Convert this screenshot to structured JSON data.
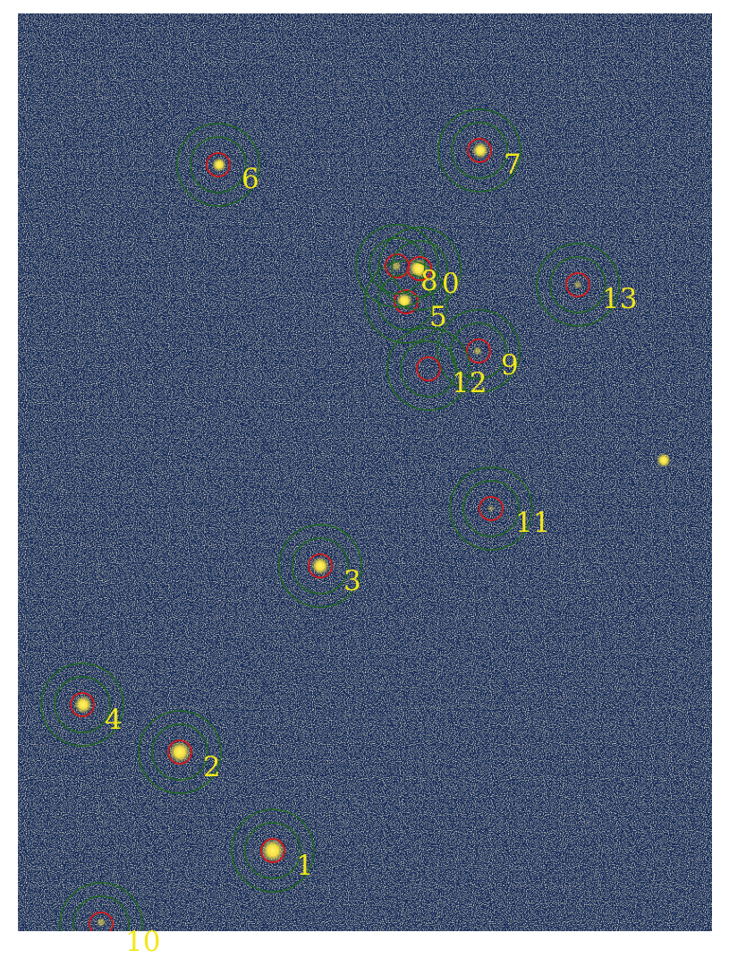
{
  "colors": {
    "sky_background": "#152a5a",
    "noise_light": "#c8c084",
    "star_core": "#ffe840",
    "aperture_ring": "#d81818",
    "annulus_ring": "#1e6a1e",
    "label_text": "#f2e81a",
    "page_background": "#ffffff"
  },
  "sources": [
    {
      "id": "src-1",
      "label": "1"
    },
    {
      "id": "src-2",
      "label": "2"
    },
    {
      "id": "src-3",
      "label": "3"
    },
    {
      "id": "src-4",
      "label": "4"
    },
    {
      "id": "src-5",
      "label": "5"
    },
    {
      "id": "src-6",
      "label": "6"
    },
    {
      "id": "src-7",
      "label": "7"
    },
    {
      "id": "src-8",
      "label": "8"
    },
    {
      "id": "src-0",
      "label": "0"
    },
    {
      "id": "src-9",
      "label": "9"
    },
    {
      "id": "src-10",
      "label": "10"
    },
    {
      "id": "src-11",
      "label": "11"
    },
    {
      "id": "src-12",
      "label": "12"
    },
    {
      "id": "src-13",
      "label": "13"
    }
  ]
}
